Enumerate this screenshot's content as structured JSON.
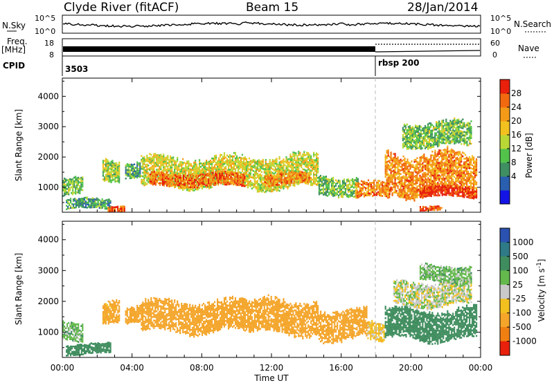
{
  "header": {
    "radar": "Clyde River (fitACF)",
    "beam": "Beam 15",
    "date": "28/Jan/2014"
  },
  "noise_panel": {
    "left_label": "N.Sky",
    "right_label": "N.Search",
    "left_ticks": [
      "10^5",
      "10^0"
    ],
    "right_ticks": [
      "10^5",
      "10^0"
    ]
  },
  "freq_panel": {
    "left_label_top": "Freq.",
    "left_label_unit": "[MHz]",
    "right_label": "Nave",
    "left_ticks": [
      "18",
      "8"
    ],
    "right_ticks": [
      "60",
      "0"
    ]
  },
  "cpid": {
    "label": "CPID",
    "segments": [
      {
        "start_hour": 0,
        "text": "3503"
      },
      {
        "start_hour": 18.0,
        "text": "rbsp 200"
      }
    ]
  },
  "time_axis": {
    "label": "Time UT",
    "range_hours": [
      0,
      24
    ],
    "ticks": [
      "00:00",
      "04:00",
      "08:00",
      "12:00",
      "16:00",
      "20:00",
      "00:00"
    ]
  },
  "range_axis": {
    "label": "Slant Range [km]",
    "ylim_km": [
      180,
      4600
    ],
    "ticks": [
      "1000",
      "2000",
      "3000",
      "4000"
    ]
  },
  "power_scale": {
    "label": "Power [dB]",
    "ticks": [
      "28",
      "24",
      "20",
      "16",
      "12",
      "8",
      "4"
    ],
    "colors": [
      "#1414e6",
      "#2a5fb0",
      "#3f8f63",
      "#52c24b",
      "#b9d836",
      "#f2c11f",
      "#f39a18",
      "#f16a10",
      "#e8200c"
    ]
  },
  "velocity_scale": {
    "label": "Velocity [m s^-1]",
    "ticks": [
      "1000",
      "500",
      "100",
      "25",
      "-25",
      "-100",
      "-500",
      "-1000"
    ],
    "colors": [
      "#2b52b0",
      "#2e7a86",
      "#3f8d5e",
      "#64b94c",
      "#c9c9c9",
      "#f2c11f",
      "#f4a52a",
      "#f07f12",
      "#e8200c"
    ]
  },
  "chart_data": {
    "type": "heatmap",
    "title": "Clyde River (fitACF) Beam 15 28/Jan/2014",
    "xlabel": "Time UT",
    "ylabel": "Slant Range [km]",
    "xlim_hours": [
      0,
      24
    ],
    "ylim_km": [
      180,
      4600
    ],
    "series": [
      {
        "name": "Power",
        "unit": "dB",
        "scatter_regions": [
          {
            "t": [
              0.0,
              1.2
            ],
            "r": [
              700,
              1350
            ],
            "level": 12
          },
          {
            "t": [
              0.2,
              2.8
            ],
            "r": [
              250,
              650
            ],
            "level": 10
          },
          {
            "t": [
              2.3,
              3.3
            ],
            "r": [
              1200,
              2000
            ],
            "level": 14
          },
          {
            "t": [
              2.6,
              3.6
            ],
            "r": [
              200,
              420
            ],
            "level": 26
          },
          {
            "t": [
              3.6,
              4.5
            ],
            "r": [
              1300,
              1900
            ],
            "level": 10
          },
          {
            "t": [
              4.5,
              11.0
            ],
            "r": [
              950,
              2050
            ],
            "level": 16
          },
          {
            "t": [
              5.0,
              10.5
            ],
            "r": [
              1000,
              1500
            ],
            "level": 24
          },
          {
            "t": [
              11.0,
              14.7
            ],
            "r": [
              900,
              2100
            ],
            "level": 16
          },
          {
            "t": [
              11.6,
              14.2
            ],
            "r": [
              1050,
              1500
            ],
            "level": 22
          },
          {
            "t": [
              14.7,
              17.0
            ],
            "r": [
              700,
              1400
            ],
            "level": 12
          },
          {
            "t": [
              16.8,
              18.8
            ],
            "r": [
              600,
              1200
            ],
            "level": 22
          },
          {
            "t": [
              18.5,
              23.8
            ],
            "r": [
              700,
              2200
            ],
            "level": 22
          },
          {
            "t": [
              20.5,
              23.8
            ],
            "r": [
              650,
              1050
            ],
            "level": 28
          },
          {
            "t": [
              19.5,
              23.5
            ],
            "r": [
              2300,
              3200
            ],
            "level": 12
          },
          {
            "t": [
              20.5,
              21.8
            ],
            "r": [
              200,
              400
            ],
            "level": 26
          }
        ]
      },
      {
        "name": "Velocity",
        "unit": "m s^-1",
        "scatter_regions": [
          {
            "t": [
              0.0,
              1.2
            ],
            "r": [
              700,
              1350
            ],
            "level": 60
          },
          {
            "t": [
              0.2,
              2.8
            ],
            "r": [
              250,
              650
            ],
            "level": 200
          },
          {
            "t": [
              2.3,
              3.3
            ],
            "r": [
              1200,
              2000
            ],
            "level": -150
          },
          {
            "t": [
              3.6,
              4.5
            ],
            "r": [
              1300,
              1900
            ],
            "level": -200
          },
          {
            "t": [
              4.5,
              11.0
            ],
            "r": [
              950,
              2050
            ],
            "level": -200
          },
          {
            "t": [
              11.0,
              14.7
            ],
            "r": [
              900,
              2100
            ],
            "level": -250
          },
          {
            "t": [
              14.7,
              17.5
            ],
            "r": [
              700,
              1800
            ],
            "level": -180
          },
          {
            "t": [
              17.5,
              18.5
            ],
            "r": [
              700,
              1400
            ],
            "level": -60
          },
          {
            "t": [
              18.5,
              23.8
            ],
            "r": [
              700,
              1800
            ],
            "level": 200
          },
          {
            "t": [
              19.0,
              23.5
            ],
            "r": [
              1800,
              2700
            ],
            "level": 0
          },
          {
            "t": [
              20.5,
              23.5
            ],
            "r": [
              2600,
              3200
            ],
            "level": 60
          }
        ]
      }
    ]
  }
}
